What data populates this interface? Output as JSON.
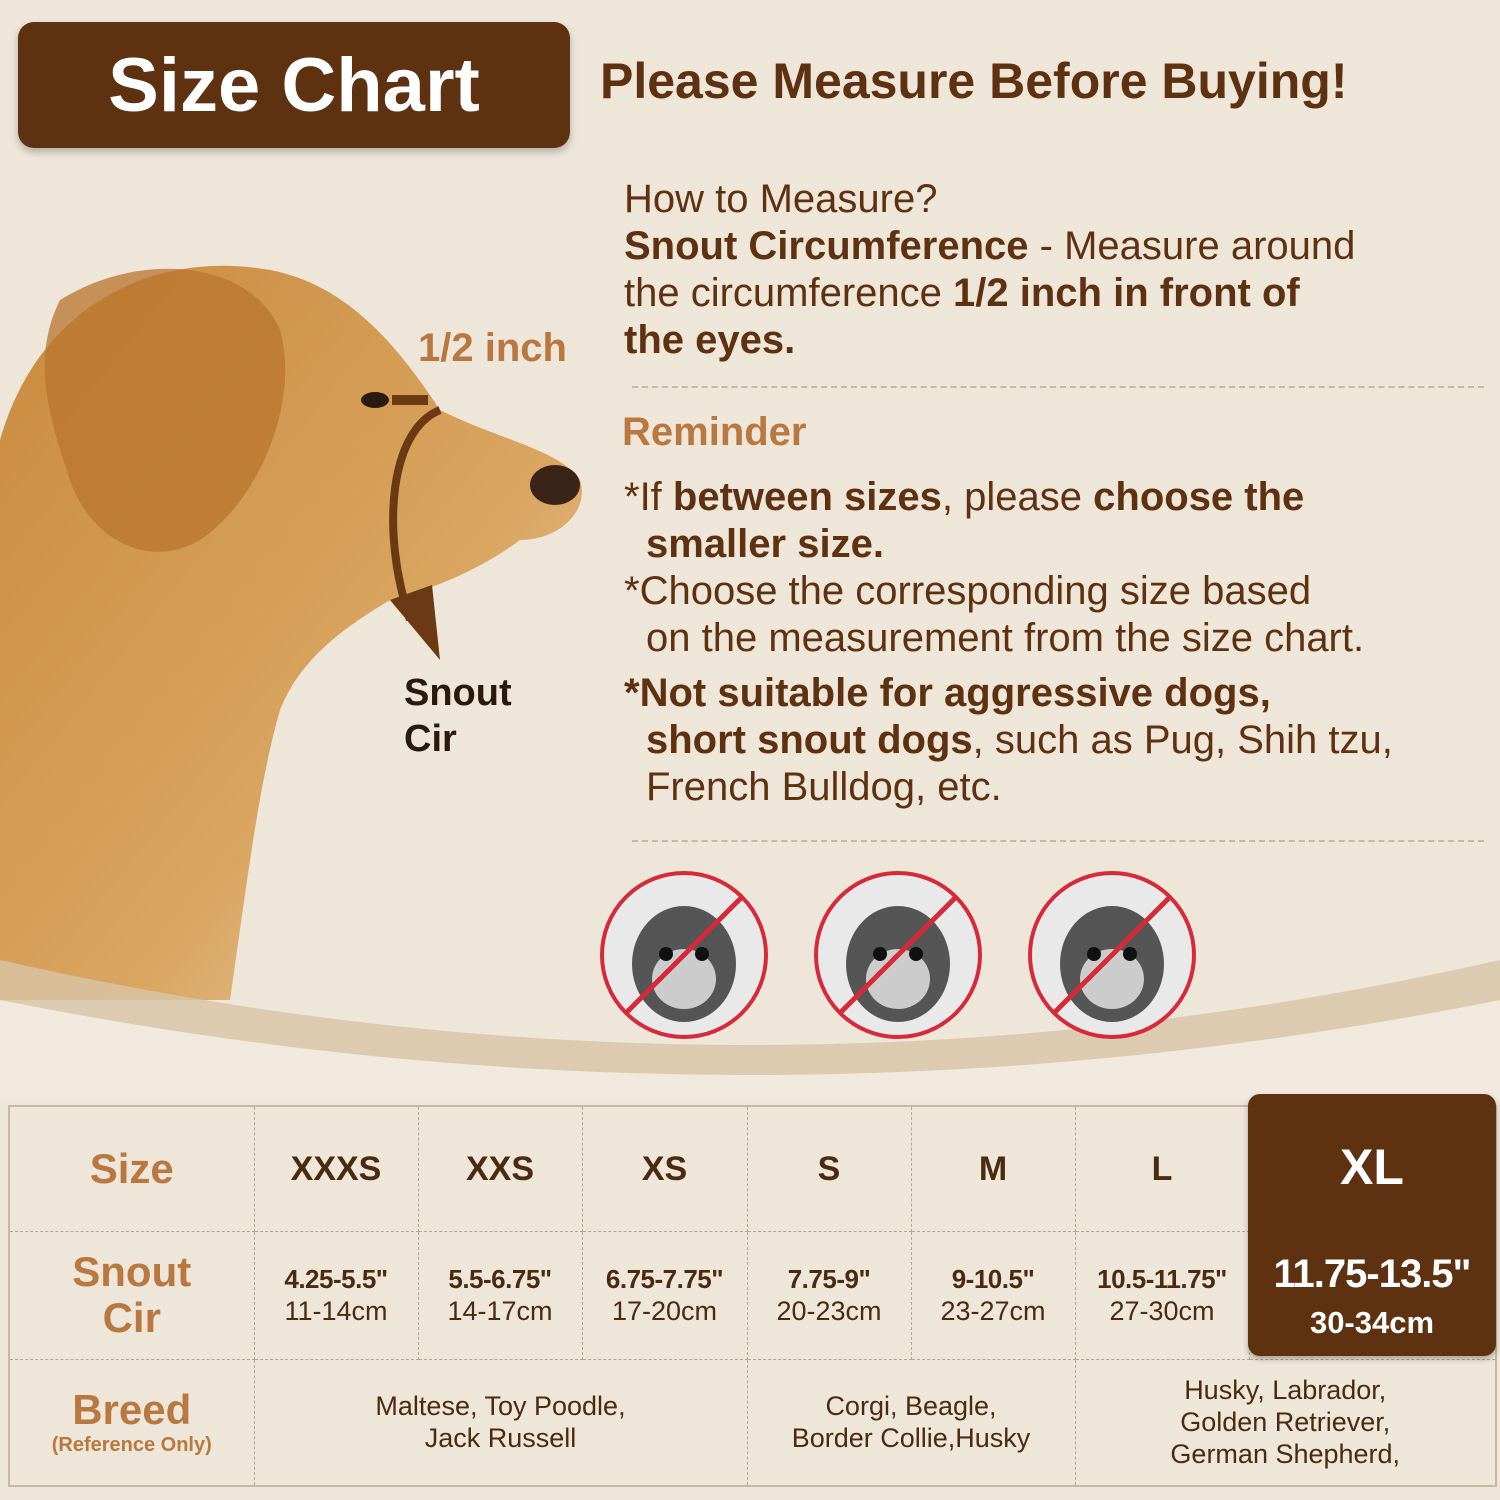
{
  "header": {
    "title": "Size Chart",
    "tagline": "Please Measure Before Buying!"
  },
  "colors": {
    "brown": "#5e3210",
    "tan": "#b8783f",
    "background": "#efe6da",
    "ban_red": "#d62a3a"
  },
  "illustration": {
    "half_inch_label": "1/2 inch",
    "snout_label_1": "Snout",
    "snout_label_2": "Cir",
    "icons": [
      "golden-retriever-photo",
      "measure-arrow-icon"
    ]
  },
  "howto": {
    "q": "How to Measure?",
    "b1": "Snout Circumference",
    "t1": " - Measure around",
    "t2": "the circumference ",
    "b2": "1/2 inch in front of",
    "b3": "the eyes."
  },
  "reminder": {
    "title": "Reminder",
    "r1a": "*If ",
    "r1b": "between sizes",
    "r1c": ", please ",
    "r1d": "choose the",
    "r1e": "smaller size",
    "r2a": "*Choose the corresponding size based",
    "r2b": "on the measurement from the size chart.",
    "r3a": "*Not suitable for aggressive dogs,",
    "r3b": "short snout dogs",
    "r3c": ", such as Pug, Shih tzu,",
    "r3d": "French Bulldog, etc."
  },
  "banned_dogs": [
    "shih-tzu",
    "pug",
    "french-bulldog"
  ],
  "table": {
    "labels": {
      "size": "Size",
      "snout1": "Snout",
      "snout2": "Cir",
      "breed": "Breed",
      "breed_note": "(Reference Only)"
    },
    "sizes": [
      {
        "size": "XXXS",
        "in": "4.25-5.5\"",
        "cm": "11-14cm"
      },
      {
        "size": "XXS",
        "in": "5.5-6.75\"",
        "cm": "14-17cm"
      },
      {
        "size": "XS",
        "in": "6.75-7.75\"",
        "cm": "17-20cm"
      },
      {
        "size": "S",
        "in": "7.75-9\"",
        "cm": "20-23cm"
      },
      {
        "size": "M",
        "in": "9-10.5\"",
        "cm": "23-27cm"
      },
      {
        "size": "L",
        "in": "10.5-11.75\"",
        "cm": "27-30cm"
      },
      {
        "size": "XL",
        "in": "11.75-13.5\"",
        "cm": "30-34cm"
      }
    ],
    "breeds": [
      {
        "l1": "Maltese, Toy Poodle,",
        "l2": "Jack Russell"
      },
      {
        "l1": "Corgi, Beagle,",
        "l2": "Border Collie,Husky"
      },
      {
        "l1": "Husky, Labrador,",
        "l2": "Golden Retriever,",
        "l3": "German Shepherd,"
      }
    ]
  }
}
